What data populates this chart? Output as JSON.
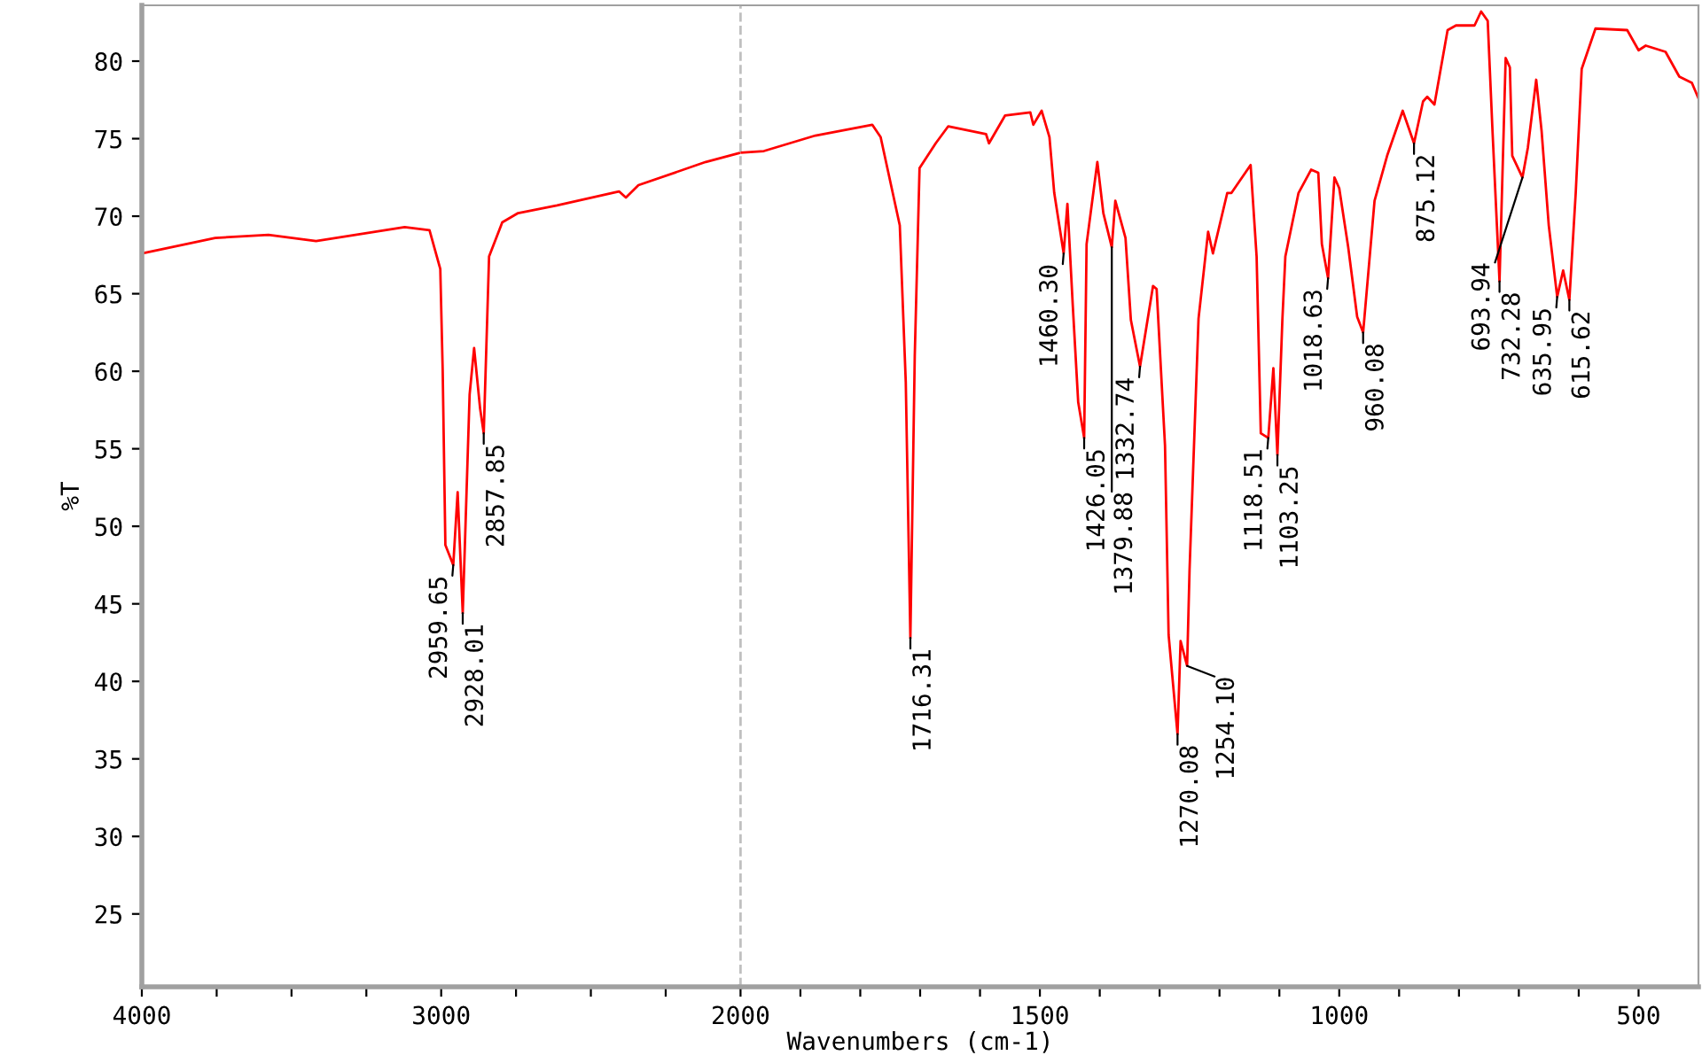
{
  "chart_data": [
    {
      "type": "line",
      "ylabel": "%T",
      "xlim": [
        4000,
        2000
      ],
      "ylim": [
        20.3,
        83.6
      ],
      "tick_labels": "xy",
      "line_style": "solid",
      "xticks": [
        4000,
        {
          "value": 3750,
          "label": null
        },
        {
          "value": 3500,
          "label": null
        },
        {
          "value": 3250,
          "label": null
        },
        3000,
        {
          "value": 2750,
          "label": null
        },
        {
          "value": 2500,
          "label": null
        },
        {
          "value": 2250,
          "label": null
        }
      ],
      "yticks": [
        25,
        30,
        35,
        40,
        45,
        50,
        55,
        60,
        65,
        70,
        75,
        80
      ],
      "series": [
        {
          "color": "#ff0000",
          "x": [
            4000,
            3755,
            3577,
            3418,
            3122,
            3039,
            3003,
            2995,
            2986,
            2959.65,
            2945,
            2928.01,
            2905,
            2890,
            2870,
            2857.85,
            2840,
            2796,
            2743,
            2613,
            2406,
            2383,
            2341,
            2116,
            2000
          ],
          "values": [
            67.6,
            68.6,
            68.8,
            68.4,
            69.3,
            69.1,
            66.6,
            60.1,
            48.8,
            47.5,
            52.2,
            44.4,
            58.5,
            61.5,
            57.6,
            56,
            67.4,
            69.6,
            70.2,
            70.7,
            71.6,
            71.2,
            72,
            73.5,
            74.1
          ]
        }
      ],
      "annotations": [
        {
          "text": "2959.65",
          "x": 2959.65,
          "y": 47.5
        },
        {
          "text": "2928.01",
          "x": 2928.01,
          "y": 44.4
        },
        {
          "text": "2857.85",
          "x": 2857.85,
          "y": 56
        }
      ]
    },
    {
      "type": "line",
      "xlabel": "Wavenumbers (cm-1)",
      "xlim": [
        2000,
        400
      ],
      "ylim": [
        20.3,
        83.6
      ],
      "tick_labels": "x",
      "line_style": "solid",
      "xticks": [
        2000,
        {
          "value": 1900,
          "label": null
        },
        {
          "value": 1800,
          "label": null
        },
        {
          "value": 1700,
          "label": null
        },
        {
          "value": 1600,
          "label": null
        },
        1500,
        {
          "value": 1400,
          "label": null
        },
        {
          "value": 1300,
          "label": null
        },
        {
          "value": 1200,
          "label": null
        },
        {
          "value": 1100,
          "label": null
        },
        1000,
        {
          "value": 900,
          "label": null
        },
        {
          "value": 800,
          "label": null
        },
        {
          "value": 700,
          "label": null
        },
        {
          "value": 600,
          "label": null
        },
        500
      ],
      "ref_lines": [
        {
          "axis": "x",
          "value": 2000,
          "label": null,
          "color": "#c0c0c0",
          "line_style": "dashed"
        }
      ],
      "series": [
        {
          "color": "#ff0000",
          "x": [
            2000,
            1961,
            1875,
            1780,
            1766,
            1734,
            1724,
            1716.31,
            1709,
            1701,
            1674,
            1653,
            1590,
            1585,
            1558,
            1516,
            1511,
            1497,
            1484,
            1476,
            1460.3,
            1454,
            1445,
            1436,
            1426.05,
            1422,
            1404,
            1394,
            1379.88,
            1374,
            1357,
            1348,
            1332.74,
            1311,
            1305,
            1291,
            1285,
            1270.08,
            1265,
            1254.1,
            1250,
            1235,
            1219,
            1211,
            1187,
            1180,
            1148,
            1138,
            1131,
            1118.51,
            1110,
            1103.25,
            1095,
            1090,
            1068,
            1047,
            1035,
            1029,
            1018.63,
            1008,
            1000,
            985,
            970,
            960.08,
            941,
            920,
            894,
            875.12,
            860,
            853,
            841,
            830,
            819,
            805,
            774,
            763,
            752,
            744,
            732.28,
            722,
            715,
            711,
            693.94,
            685,
            671,
            662,
            650,
            635.95,
            626,
            615.62,
            605,
            595,
            572,
            519,
            500,
            488,
            455,
            432,
            411,
            400
          ],
          "values": [
            74.1,
            74.2,
            75.2,
            75.9,
            75.1,
            69.4,
            59.3,
            42.8,
            61,
            73.1,
            74.7,
            75.8,
            75.3,
            74.7,
            76.5,
            76.7,
            75.9,
            76.8,
            75.1,
            71.5,
            67.6,
            70.8,
            64.2,
            58,
            55.7,
            68.2,
            73.5,
            70.2,
            68,
            71,
            68.6,
            63.3,
            60.3,
            65.5,
            65.3,
            55.2,
            43,
            36.6,
            42.6,
            41,
            47.2,
            63.4,
            69,
            67.6,
            71.5,
            71.5,
            73.3,
            67.4,
            56,
            55.7,
            60.2,
            54.6,
            63.3,
            67.4,
            71.5,
            73,
            72.8,
            68.2,
            66,
            72.5,
            71.8,
            68,
            63.5,
            62.5,
            71,
            73.9,
            76.8,
            74.7,
            77.4,
            77.7,
            77.2,
            79.6,
            82,
            82.3,
            82.3,
            83.2,
            82.6,
            75.5,
            65.8,
            80.2,
            79.6,
            73.9,
            72.5,
            74.4,
            78.8,
            75.5,
            69.4,
            64.8,
            66.5,
            64.6,
            71.5,
            79.5,
            82.1,
            82,
            80.7,
            81,
            80.6,
            79,
            78.6,
            77.6
          ]
        }
      ],
      "annotations": [
        {
          "text": "1716.31",
          "x": 1716.31,
          "y": 42.8
        },
        {
          "text": "1460.30",
          "x": 1460.3,
          "y": 67.6
        },
        {
          "text": "1426.05",
          "x": 1426.05,
          "y": 55.7
        },
        {
          "text": "1379.88",
          "x": 1379.88,
          "y": 68
        },
        {
          "text": "1332.74",
          "x": 1332.74,
          "y": 60.3
        },
        {
          "text": "1270.08",
          "x": 1270.08,
          "y": 36.6
        },
        {
          "text": "1254.10",
          "x": 1254.1,
          "y": 41
        },
        {
          "text": "1118.51",
          "x": 1118.51,
          "y": 55.7
        },
        {
          "text": "1103.25",
          "x": 1103.25,
          "y": 54.6
        },
        {
          "text": "1018.63",
          "x": 1018.63,
          "y": 66
        },
        {
          "text": "960.08",
          "x": 960.08,
          "y": 62.5
        },
        {
          "text": "875.12",
          "x": 875.12,
          "y": 74.7
        },
        {
          "text": "732.28",
          "x": 732.28,
          "y": 65.8
        },
        {
          "text": "693.94",
          "x": 693.94,
          "y": 72.5
        },
        {
          "text": "635.95",
          "x": 635.95,
          "y": 64.8
        },
        {
          "text": "615.62",
          "x": 615.62,
          "y": 64.6
        }
      ]
    }
  ]
}
